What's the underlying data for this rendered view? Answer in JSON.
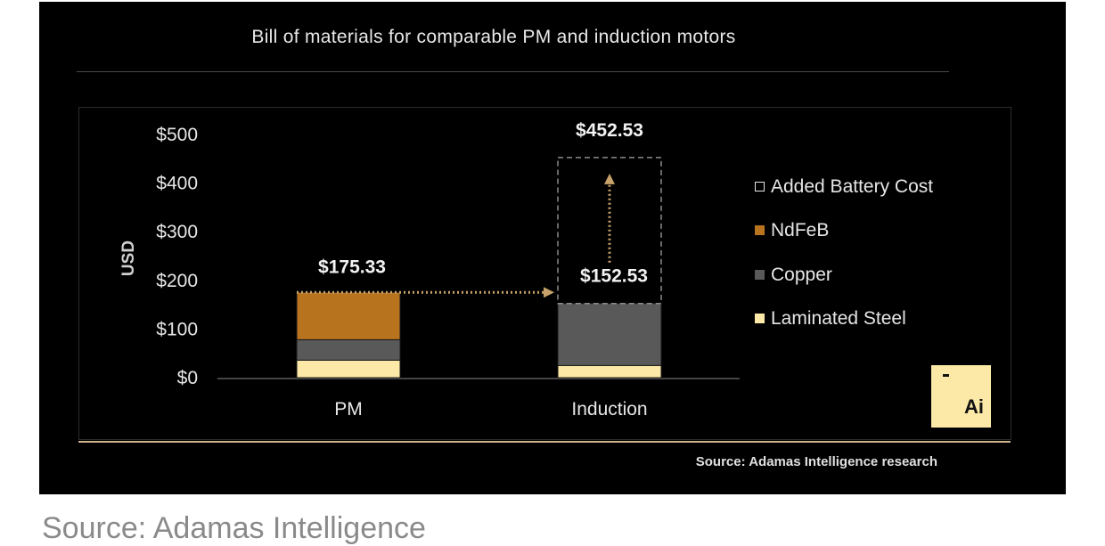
{
  "caption": "Source: Adamas Intelligence",
  "logo": {
    "text": "Ai",
    "background": "#fde9a7"
  },
  "chart_data": {
    "type": "bar",
    "stacked": true,
    "title": "Bill of materials for comparable PM and induction motors",
    "source": "Source: Adamas Intelligence research",
    "xlabel": "",
    "ylabel": "USD",
    "ylim": [
      0,
      500
    ],
    "yticks": [
      0,
      100,
      200,
      300,
      400,
      500
    ],
    "ytick_labels": [
      "$0",
      "$100",
      "$200",
      "$300",
      "$400",
      "$500"
    ],
    "categories": [
      "PM",
      "Induction"
    ],
    "series": [
      {
        "name": "Laminated Steel",
        "color": "#fde9a7",
        "values": [
          36,
          25
        ]
      },
      {
        "name": "Copper",
        "color": "#595959",
        "values": [
          42,
          127.53
        ]
      },
      {
        "name": "NdFeB",
        "color": "#b8731f",
        "values": [
          97.33,
          0
        ]
      },
      {
        "name": "Added Battery Cost",
        "color": "#ffffff",
        "values": [
          0,
          300
        ],
        "style": "dashed-outline"
      }
    ],
    "legend": [
      "Added Battery Cost",
      "NdFeB",
      "Copper",
      "Laminated Steel"
    ],
    "legend_position": "right",
    "data_labels": [
      {
        "category": "PM",
        "value": 175.33,
        "text": "$175.33"
      },
      {
        "category": "Induction",
        "value": 152.53,
        "text": "$152.53"
      },
      {
        "category": "Induction",
        "value": 452.53,
        "text": "$452.53"
      }
    ],
    "arrow_color": "#c7a26a"
  }
}
